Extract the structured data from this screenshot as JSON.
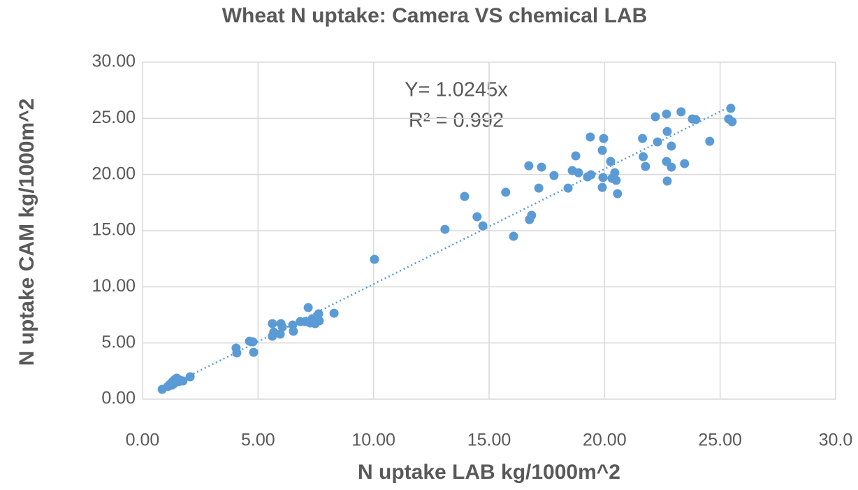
{
  "chart_data": {
    "type": "scatter",
    "title": "Wheat N uptake: Camera VS chemical LAB",
    "x_label": "N uptake LAB kg/1000m^2",
    "y_label": "N uptake CAM kg/1000m^2",
    "annotations": [
      "Y= 1.0245x",
      "R² = 0.992"
    ],
    "color": "#5b9bd5",
    "grid": true,
    "xlim": [
      0,
      30
    ],
    "ylim": [
      0,
      30
    ],
    "xticks": [
      {
        "value": 0,
        "label": "0.00"
      },
      {
        "value": 5,
        "label": "5.00"
      },
      {
        "value": 10,
        "label": "10.00"
      },
      {
        "value": 15,
        "label": "15.00"
      },
      {
        "value": 20,
        "label": "20.00"
      },
      {
        "value": 25,
        "label": "25.00"
      },
      {
        "value": 30,
        "label": "30.0"
      }
    ],
    "yticks": [
      {
        "value": 0,
        "label": "0.00"
      },
      {
        "value": 5,
        "label": "5.00"
      },
      {
        "value": 10,
        "label": "10.00"
      },
      {
        "value": 15,
        "label": "15.00"
      },
      {
        "value": 20,
        "label": "20.00"
      },
      {
        "value": 25,
        "label": "25.00"
      },
      {
        "value": 30,
        "label": "30.00"
      }
    ],
    "trendline": {
      "slope": 1.0245,
      "x": [
        0.9,
        25.6
      ]
    },
    "x": [
      0.85,
      1.09,
      1.18,
      1.3,
      1.39,
      1.48,
      1.57,
      1.63,
      1.75,
      2.06,
      1.27,
      1.36,
      4.05,
      4.08,
      4.63,
      4.78,
      4.81,
      5.62,
      5.62,
      5.68,
      5.99,
      5.96,
      6.05,
      6.5,
      6.53,
      6.83,
      7.05,
      7.17,
      7.26,
      7.35,
      7.47,
      7.62,
      7.65,
      8.29,
      10.04,
      13.09,
      13.94,
      14.48,
      14.73,
      15.72,
      16.06,
      16.72,
      16.75,
      16.84,
      17.15,
      17.27,
      17.81,
      18.42,
      18.6,
      18.75,
      18.87,
      19.26,
      19.38,
      19.41,
      19.9,
      19.96,
      19.93,
      19.9,
      20.26,
      20.32,
      20.44,
      20.5,
      20.56,
      21.64,
      21.67,
      21.77,
      22.2,
      22.29,
      22.68,
      22.68,
      22.71,
      22.71,
      22.89,
      22.89,
      23.31,
      23.46,
      23.8,
      23.95,
      24.55,
      25.37,
      25.46,
      25.52
    ],
    "y": [
      0.87,
      1.12,
      1.31,
      1.56,
      1.74,
      1.87,
      1.56,
      1.68,
      1.62,
      1.99,
      1.24,
      1.37,
      4.54,
      4.11,
      5.16,
      5.1,
      4.17,
      6.72,
      5.6,
      5.97,
      6.72,
      5.79,
      6.41,
      6.6,
      6.04,
      6.91,
      6.91,
      8.15,
      6.78,
      7.16,
      6.72,
      7.59,
      6.97,
      7.65,
      12.45,
      15.12,
      18.05,
      16.24,
      15.43,
      18.42,
      14.5,
      20.78,
      15.99,
      16.37,
      18.79,
      20.66,
      19.91,
      18.79,
      20.35,
      21.66,
      20.16,
      19.79,
      23.34,
      19.98,
      22.15,
      23.21,
      19.73,
      18.85,
      21.16,
      19.66,
      20.16,
      19.48,
      18.29,
      23.21,
      21.59,
      20.72,
      25.14,
      22.9,
      25.39,
      21.16,
      23.83,
      19.42,
      22.53,
      20.66,
      25.58,
      20.97,
      24.95,
      24.89,
      22.96,
      24.95,
      25.89,
      24.7
    ]
  }
}
